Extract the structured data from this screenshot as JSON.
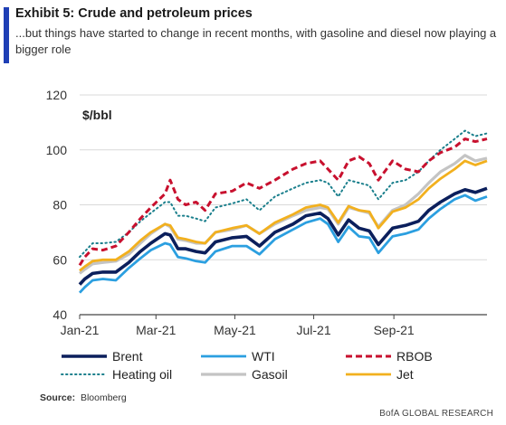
{
  "header": {
    "title": "Exhibit 5: Crude and petroleum prices",
    "subtitle": "...but things have started to change in recent months, with gasoline and diesel now playing a bigger role"
  },
  "footer": {
    "source_label": "Source:",
    "source_value": "Bloomberg",
    "brand": "BofA GLOBAL RESEARCH"
  },
  "colors": {
    "accent": "#1f3fb5",
    "brent": "#0b1f5c",
    "wti": "#2b9fe0",
    "rbob": "#c8102e",
    "heating_oil": "#1a7f8c",
    "gasoil": "#c4c4c4",
    "jet": "#f2b01e"
  },
  "chart_data": {
    "type": "line",
    "ylabel": "$/bbl",
    "ylim": [
      40,
      120
    ],
    "y_ticks": [
      40,
      60,
      80,
      100,
      120
    ],
    "x_range": [
      "2021-01-01",
      "2021-11-12"
    ],
    "x_ticks": [
      {
        "date": "2021-01-01",
        "label": "Jan-21"
      },
      {
        "date": "2021-03-01",
        "label": "Mar-21"
      },
      {
        "date": "2021-05-01",
        "label": "May-21"
      },
      {
        "date": "2021-07-01",
        "label": "Jul-21"
      },
      {
        "date": "2021-09-01",
        "label": "Sep-21"
      }
    ],
    "grid": "horizontal",
    "legend_position": "bottom",
    "series": [
      {
        "name": "Brent",
        "color_key": "brent",
        "style": "solid",
        "points": [
          [
            "2021-01-01",
            51
          ],
          [
            "2021-01-05",
            53
          ],
          [
            "2021-01-11",
            55
          ],
          [
            "2021-01-19",
            55.5
          ],
          [
            "2021-01-29",
            55.5
          ],
          [
            "2021-02-08",
            59
          ],
          [
            "2021-02-17",
            63
          ],
          [
            "2021-02-25",
            66
          ],
          [
            "2021-03-08",
            69.5
          ],
          [
            "2021-03-12",
            69
          ],
          [
            "2021-03-18",
            64
          ],
          [
            "2021-03-24",
            64
          ],
          [
            "2021-04-01",
            63
          ],
          [
            "2021-04-08",
            62.5
          ],
          [
            "2021-04-16",
            66.5
          ],
          [
            "2021-04-29",
            68
          ],
          [
            "2021-05-10",
            68.5
          ],
          [
            "2021-05-20",
            65
          ],
          [
            "2021-06-01",
            70
          ],
          [
            "2021-06-15",
            73
          ],
          [
            "2021-06-25",
            76
          ],
          [
            "2021-07-06",
            77
          ],
          [
            "2021-07-12",
            75
          ],
          [
            "2021-07-20",
            69
          ],
          [
            "2021-07-28",
            74.5
          ],
          [
            "2021-08-05",
            71.5
          ],
          [
            "2021-08-13",
            70.5
          ],
          [
            "2021-08-20",
            65.5
          ],
          [
            "2021-08-31",
            71.5
          ],
          [
            "2021-09-10",
            72.5
          ],
          [
            "2021-09-20",
            74
          ],
          [
            "2021-09-28",
            78
          ],
          [
            "2021-10-07",
            81
          ],
          [
            "2021-10-18",
            84
          ],
          [
            "2021-10-26",
            85.5
          ],
          [
            "2021-11-03",
            84.5
          ],
          [
            "2021-11-12",
            86
          ]
        ]
      },
      {
        "name": "WTI",
        "color_key": "wti",
        "style": "solid",
        "points": [
          [
            "2021-01-01",
            48
          ],
          [
            "2021-01-05",
            50
          ],
          [
            "2021-01-11",
            52.5
          ],
          [
            "2021-01-19",
            53
          ],
          [
            "2021-01-29",
            52.5
          ],
          [
            "2021-02-08",
            57
          ],
          [
            "2021-02-17",
            60.5
          ],
          [
            "2021-02-25",
            63.5
          ],
          [
            "2021-03-08",
            66
          ],
          [
            "2021-03-12",
            65.5
          ],
          [
            "2021-03-18",
            61
          ],
          [
            "2021-03-24",
            60.5
          ],
          [
            "2021-04-01",
            59.5
          ],
          [
            "2021-04-08",
            59
          ],
          [
            "2021-04-16",
            63
          ],
          [
            "2021-04-29",
            65
          ],
          [
            "2021-05-10",
            65
          ],
          [
            "2021-05-20",
            62
          ],
          [
            "2021-06-01",
            67.5
          ],
          [
            "2021-06-15",
            71
          ],
          [
            "2021-06-25",
            73.5
          ],
          [
            "2021-07-06",
            75
          ],
          [
            "2021-07-12",
            73
          ],
          [
            "2021-07-20",
            66.5
          ],
          [
            "2021-07-28",
            72
          ],
          [
            "2021-08-05",
            68.5
          ],
          [
            "2021-08-13",
            68
          ],
          [
            "2021-08-20",
            62.5
          ],
          [
            "2021-08-31",
            68.5
          ],
          [
            "2021-09-10",
            69.5
          ],
          [
            "2021-09-20",
            71
          ],
          [
            "2021-09-28",
            75
          ],
          [
            "2021-10-07",
            78.5
          ],
          [
            "2021-10-18",
            82
          ],
          [
            "2021-10-26",
            83.5
          ],
          [
            "2021-11-03",
            81.5
          ],
          [
            "2021-11-12",
            83
          ]
        ]
      },
      {
        "name": "RBOB",
        "color_key": "rbob",
        "style": "dashed",
        "points": [
          [
            "2021-01-01",
            58
          ],
          [
            "2021-01-05",
            61
          ],
          [
            "2021-01-11",
            64
          ],
          [
            "2021-01-19",
            63.5
          ],
          [
            "2021-01-29",
            65
          ],
          [
            "2021-02-08",
            70
          ],
          [
            "2021-02-17",
            75
          ],
          [
            "2021-02-25",
            79
          ],
          [
            "2021-03-08",
            84
          ],
          [
            "2021-03-12",
            89
          ],
          [
            "2021-03-18",
            82
          ],
          [
            "2021-03-24",
            80
          ],
          [
            "2021-04-01",
            81
          ],
          [
            "2021-04-08",
            78
          ],
          [
            "2021-04-16",
            84
          ],
          [
            "2021-04-29",
            85
          ],
          [
            "2021-05-10",
            88
          ],
          [
            "2021-05-20",
            86
          ],
          [
            "2021-06-01",
            89
          ],
          [
            "2021-06-15",
            93
          ],
          [
            "2021-06-25",
            95
          ],
          [
            "2021-07-06",
            96
          ],
          [
            "2021-07-12",
            93
          ],
          [
            "2021-07-20",
            89
          ],
          [
            "2021-07-28",
            96
          ],
          [
            "2021-08-05",
            97.5
          ],
          [
            "2021-08-13",
            95
          ],
          [
            "2021-08-20",
            89
          ],
          [
            "2021-08-31",
            96
          ],
          [
            "2021-09-10",
            93
          ],
          [
            "2021-09-20",
            92
          ],
          [
            "2021-09-28",
            96
          ],
          [
            "2021-10-07",
            99
          ],
          [
            "2021-10-18",
            101
          ],
          [
            "2021-10-26",
            104
          ],
          [
            "2021-11-03",
            103
          ],
          [
            "2021-11-12",
            104
          ]
        ]
      },
      {
        "name": "Heating oil",
        "color_key": "heating_oil",
        "style": "dotted",
        "points": [
          [
            "2021-01-01",
            61
          ],
          [
            "2021-01-05",
            63
          ],
          [
            "2021-01-11",
            66
          ],
          [
            "2021-01-19",
            66
          ],
          [
            "2021-01-29",
            66.5
          ],
          [
            "2021-02-08",
            70
          ],
          [
            "2021-02-17",
            74
          ],
          [
            "2021-02-25",
            77
          ],
          [
            "2021-03-08",
            81
          ],
          [
            "2021-03-12",
            81
          ],
          [
            "2021-03-18",
            76
          ],
          [
            "2021-03-24",
            76
          ],
          [
            "2021-04-01",
            75
          ],
          [
            "2021-04-08",
            74
          ],
          [
            "2021-04-16",
            79
          ],
          [
            "2021-04-29",
            80.5
          ],
          [
            "2021-05-10",
            82
          ],
          [
            "2021-05-20",
            78
          ],
          [
            "2021-06-01",
            83
          ],
          [
            "2021-06-15",
            86
          ],
          [
            "2021-06-25",
            88
          ],
          [
            "2021-07-06",
            89
          ],
          [
            "2021-07-12",
            88
          ],
          [
            "2021-07-20",
            83
          ],
          [
            "2021-07-28",
            89
          ],
          [
            "2021-08-05",
            88
          ],
          [
            "2021-08-13",
            87
          ],
          [
            "2021-08-20",
            82
          ],
          [
            "2021-08-31",
            88
          ],
          [
            "2021-09-10",
            89
          ],
          [
            "2021-09-20",
            92
          ],
          [
            "2021-09-28",
            96
          ],
          [
            "2021-10-07",
            100
          ],
          [
            "2021-10-18",
            104
          ],
          [
            "2021-10-26",
            107
          ],
          [
            "2021-11-03",
            105
          ],
          [
            "2021-11-12",
            106
          ]
        ]
      },
      {
        "name": "Gasoil",
        "color_key": "gasoil",
        "style": "solid",
        "points": [
          [
            "2021-01-01",
            55
          ],
          [
            "2021-01-05",
            56.5
          ],
          [
            "2021-01-11",
            58.5
          ],
          [
            "2021-01-19",
            59
          ],
          [
            "2021-01-29",
            59.5
          ],
          [
            "2021-02-08",
            62
          ],
          [
            "2021-02-17",
            66
          ],
          [
            "2021-02-25",
            69.5
          ],
          [
            "2021-03-08",
            73
          ],
          [
            "2021-03-12",
            72
          ],
          [
            "2021-03-18",
            67.5
          ],
          [
            "2021-03-24",
            67
          ],
          [
            "2021-04-01",
            66
          ],
          [
            "2021-04-08",
            66
          ],
          [
            "2021-04-16",
            70
          ],
          [
            "2021-04-29",
            71
          ],
          [
            "2021-05-10",
            72.5
          ],
          [
            "2021-05-20",
            69.5
          ],
          [
            "2021-06-01",
            73
          ],
          [
            "2021-06-15",
            76
          ],
          [
            "2021-06-25",
            78
          ],
          [
            "2021-07-06",
            79
          ],
          [
            "2021-07-12",
            78.5
          ],
          [
            "2021-07-20",
            73
          ],
          [
            "2021-07-28",
            79
          ],
          [
            "2021-08-05",
            78
          ],
          [
            "2021-08-13",
            77
          ],
          [
            "2021-08-20",
            72
          ],
          [
            "2021-08-31",
            78
          ],
          [
            "2021-09-10",
            80
          ],
          [
            "2021-09-20",
            84
          ],
          [
            "2021-09-28",
            88
          ],
          [
            "2021-10-07",
            92
          ],
          [
            "2021-10-18",
            95
          ],
          [
            "2021-10-26",
            98
          ],
          [
            "2021-11-03",
            96
          ],
          [
            "2021-11-12",
            97
          ]
        ]
      },
      {
        "name": "Jet",
        "color_key": "jet",
        "style": "solid",
        "points": [
          [
            "2021-01-01",
            56
          ],
          [
            "2021-01-05",
            57.5
          ],
          [
            "2021-01-11",
            59.5
          ],
          [
            "2021-01-19",
            60
          ],
          [
            "2021-01-29",
            60
          ],
          [
            "2021-02-08",
            63
          ],
          [
            "2021-02-17",
            67
          ],
          [
            "2021-02-25",
            70
          ],
          [
            "2021-03-08",
            73
          ],
          [
            "2021-03-12",
            72.5
          ],
          [
            "2021-03-18",
            68
          ],
          [
            "2021-03-24",
            67.5
          ],
          [
            "2021-04-01",
            66.5
          ],
          [
            "2021-04-08",
            66
          ],
          [
            "2021-04-16",
            70
          ],
          [
            "2021-04-29",
            71.5
          ],
          [
            "2021-05-10",
            72.5
          ],
          [
            "2021-05-20",
            69.5
          ],
          [
            "2021-06-01",
            73.5
          ],
          [
            "2021-06-15",
            76.5
          ],
          [
            "2021-06-25",
            79
          ],
          [
            "2021-07-06",
            80
          ],
          [
            "2021-07-12",
            79
          ],
          [
            "2021-07-20",
            73.5
          ],
          [
            "2021-07-28",
            79.5
          ],
          [
            "2021-08-05",
            78
          ],
          [
            "2021-08-13",
            77.5
          ],
          [
            "2021-08-20",
            71.5
          ],
          [
            "2021-08-31",
            77.5
          ],
          [
            "2021-09-10",
            79
          ],
          [
            "2021-09-20",
            82
          ],
          [
            "2021-09-28",
            86
          ],
          [
            "2021-10-07",
            89.5
          ],
          [
            "2021-10-18",
            93
          ],
          [
            "2021-10-26",
            96
          ],
          [
            "2021-11-03",
            94.5
          ],
          [
            "2021-11-12",
            96
          ]
        ]
      }
    ]
  }
}
